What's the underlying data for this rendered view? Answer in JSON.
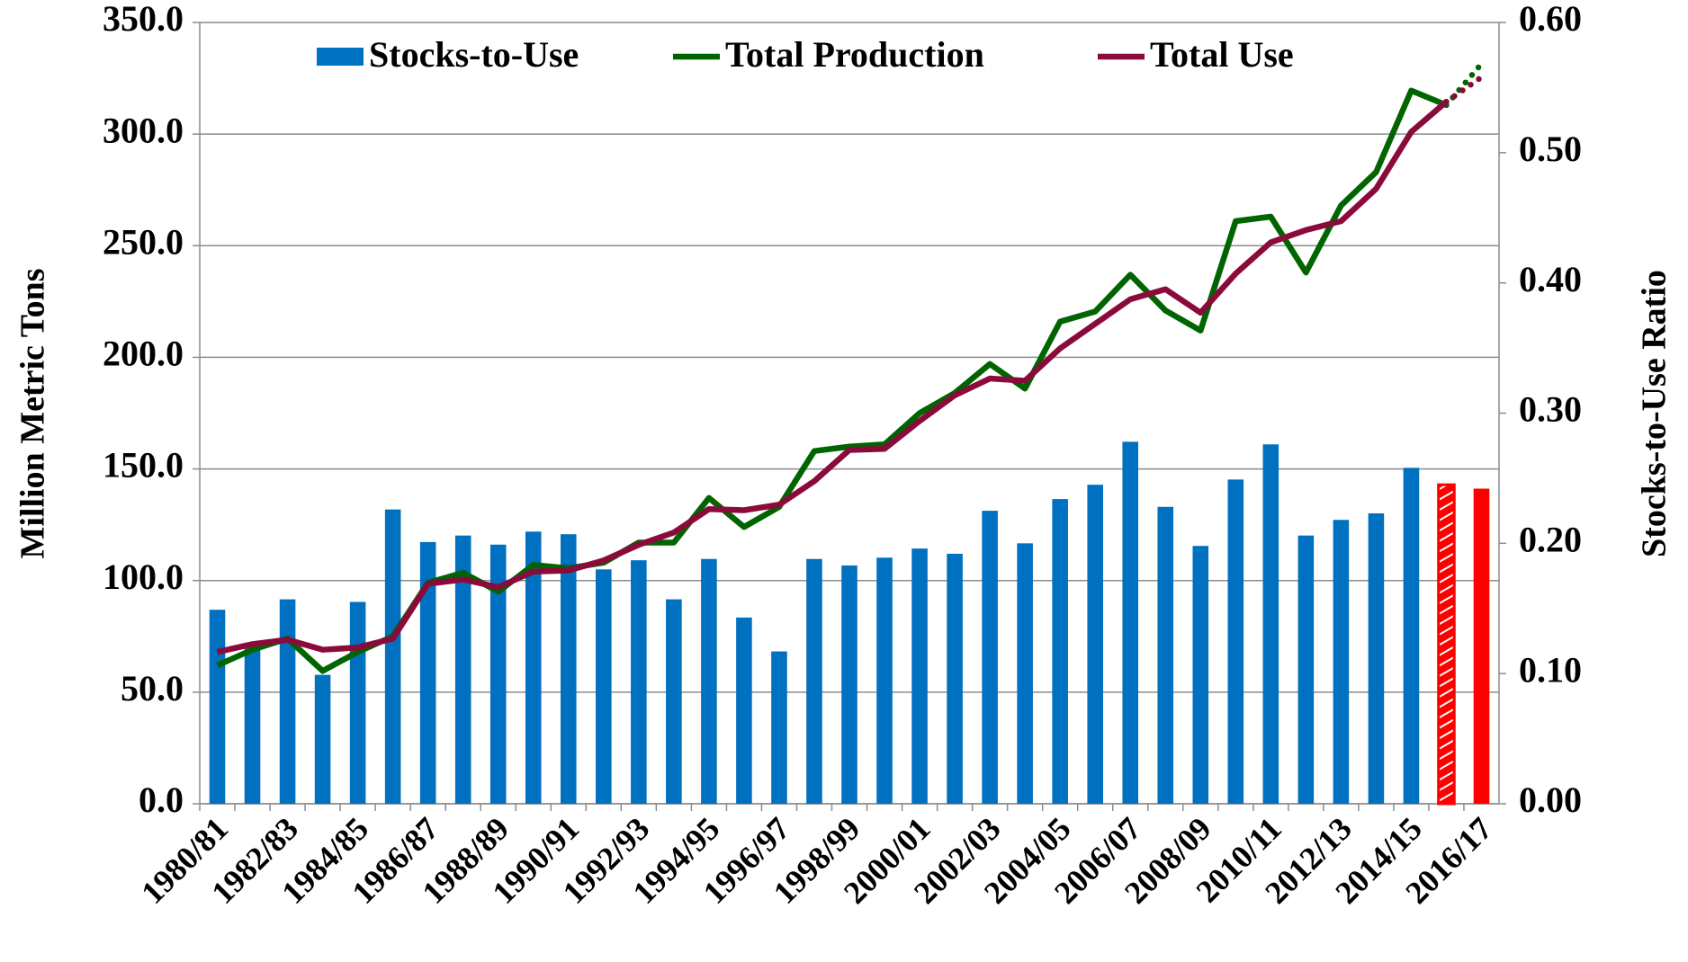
{
  "chart_data": {
    "type": "bar-line",
    "categories": [
      "1980/81",
      null,
      "1982/83",
      null,
      "1984/85",
      null,
      "1986/87",
      null,
      "1988/89",
      null,
      "1990/91",
      null,
      "1992/93",
      null,
      "1994/95",
      null,
      "1996/97",
      null,
      "1998/99",
      null,
      "2000/01",
      null,
      "2002/03",
      null,
      "2004/05",
      null,
      "2006/07",
      null,
      "2008/09",
      null,
      "2010/11",
      null,
      "2012/13",
      null,
      "2014/15",
      null,
      "2016/17"
    ],
    "ylabel": "Million Metric Tons",
    "y2label": "Stocks-to-Use Ratio",
    "ylim": [
      0,
      350
    ],
    "yticks": [
      {
        "value": 0,
        "label": "0.0"
      },
      {
        "value": 50,
        "label": "50.0"
      },
      {
        "value": 100,
        "label": "100.0"
      },
      {
        "value": 150,
        "label": "150.0"
      },
      {
        "value": 200,
        "label": "200.0"
      },
      {
        "value": 250,
        "label": "250.0"
      },
      {
        "value": 300,
        "label": "300.0"
      },
      {
        "value": 350,
        "label": "350.0"
      }
    ],
    "y2lim": [
      0,
      0.6
    ],
    "y2ticks": [
      {
        "value": 0,
        "label": "0.00"
      },
      {
        "value": 0.1,
        "label": "0.10"
      },
      {
        "value": 0.2,
        "label": "0.20"
      },
      {
        "value": 0.3,
        "label": "0.30"
      },
      {
        "value": 0.4,
        "label": "0.40"
      },
      {
        "value": 0.5,
        "label": "0.50"
      },
      {
        "value": 0.6,
        "label": "0.60"
      }
    ],
    "grid": true,
    "legend": "top",
    "series": [
      {
        "name": "Stocks-to-Use",
        "type": "bar",
        "axis": "y2",
        "color": "#0070c0",
        "colors": [
          "#0070c0",
          "#0070c0",
          "#0070c0",
          "#0070c0",
          "#0070c0",
          "#0070c0",
          "#0070c0",
          "#0070c0",
          "#0070c0",
          "#0070c0",
          "#0070c0",
          "#0070c0",
          "#0070c0",
          "#0070c0",
          "#0070c0",
          "#0070c0",
          "#0070c0",
          "#0070c0",
          "#0070c0",
          "#0070c0",
          "#0070c0",
          "#0070c0",
          "#0070c0",
          "#0070c0",
          "#0070c0",
          "#0070c0",
          "#0070c0",
          "#0070c0",
          "#0070c0",
          "#0070c0",
          "#0070c0",
          "#0070c0",
          "#0070c0",
          "#0070c0",
          "#0070c0",
          "#ff0000",
          "#ff0000"
        ],
        "values": [
          0.149,
          0.12,
          0.157,
          0.099,
          0.155,
          0.226,
          0.201,
          0.206,
          0.199,
          0.209,
          0.207,
          0.18,
          0.187,
          0.157,
          0.188,
          0.143,
          0.117,
          0.188,
          0.183,
          0.189,
          0.196,
          0.192,
          0.225,
          0.2,
          0.234,
          0.245,
          0.278,
          0.228,
          0.198,
          0.249,
          0.276,
          0.206,
          0.218,
          0.223,
          0.258,
          0.245,
          0.242
        ]
      },
      {
        "name": "Total Production",
        "type": "line",
        "color": "#006400",
        "values": [
          62,
          69,
          74,
          59.5,
          68,
          75,
          99,
          103.5,
          95,
          107,
          105.5,
          108,
          117,
          117,
          137,
          124,
          133,
          158,
          160,
          161,
          175,
          184,
          197,
          186,
          216,
          220.5,
          237,
          221,
          212,
          261,
          263,
          238,
          268,
          283,
          319.5,
          313,
          331.5
        ]
      },
      {
        "name": "Total Use",
        "type": "line",
        "color": "#8b0a3c",
        "values": [
          68,
          71.5,
          73.5,
          69,
          70,
          74,
          98.5,
          100.5,
          97,
          104,
          104.5,
          109,
          116,
          121.5,
          132,
          131.5,
          134,
          144.5,
          158.5,
          159,
          171.5,
          183,
          190.5,
          189.5,
          204,
          215,
          226,
          230.5,
          220,
          237.5,
          251.5,
          257,
          261,
          275.5,
          301,
          314.5,
          325.5
        ]
      }
    ]
  }
}
